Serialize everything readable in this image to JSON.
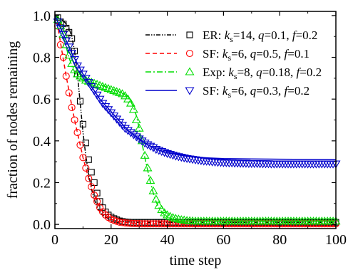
{
  "chart_data": {
    "type": "line",
    "xlabel": "time step",
    "ylabel": "fraction of nodes remaining",
    "xlim": [
      0,
      100
    ],
    "ylim": [
      -0.02,
      1.02
    ],
    "xticks": [
      0,
      20,
      40,
      60,
      80,
      100
    ],
    "yticks": [
      0.0,
      0.2,
      0.4,
      0.6,
      0.8,
      1.0
    ],
    "xtick_labels": [
      "0",
      "20",
      "40",
      "60",
      "80",
      "100"
    ],
    "ytick_labels": [
      "0.0",
      "0.2",
      "0.4",
      "0.6",
      "0.8",
      "1.0"
    ],
    "grid": false,
    "legend_position": "top-right",
    "series": [
      {
        "name": "ER: k_s=14, q=0.1, f=0.2",
        "legend": {
          "pre": "ER: ",
          "k": "k",
          "sub": "s",
          "rest": "=14, ",
          "q": "q",
          "qv": "=0.1, ",
          "f": "f",
          "fv": "=0.2"
        },
        "color": "#000000",
        "line_style": "dash-dot-dot",
        "marker": "square",
        "line_x": [
          0,
          1,
          2,
          3,
          4,
          5,
          6,
          7,
          8,
          9,
          10,
          11,
          12,
          13,
          14,
          15,
          16,
          17,
          18,
          19,
          20,
          22,
          25,
          30,
          40,
          50,
          60,
          70,
          80,
          90,
          100
        ],
        "line_y": [
          1.0,
          0.99,
          0.985,
          0.975,
          0.96,
          0.94,
          0.9,
          0.83,
          0.72,
          0.58,
          0.44,
          0.33,
          0.24,
          0.17,
          0.12,
          0.085,
          0.06,
          0.045,
          0.035,
          0.028,
          0.022,
          0.016,
          0.012,
          0.01,
          0.01,
          0.01,
          0.01,
          0.01,
          0.01,
          0.01,
          0.01
        ],
        "marker_x": [
          1,
          2,
          3,
          4,
          5,
          6,
          7,
          8,
          9,
          10,
          11,
          12,
          13,
          14,
          15,
          16,
          17,
          18,
          19,
          20,
          21,
          22,
          23,
          24,
          25,
          26,
          27,
          28,
          29,
          30,
          31,
          32,
          33,
          34,
          35,
          36,
          37,
          38,
          39,
          40,
          41,
          42,
          43,
          44,
          45,
          46,
          47,
          48,
          49,
          50,
          51,
          52,
          53,
          54,
          55,
          56,
          57,
          58,
          59,
          60,
          61,
          62,
          63,
          64,
          65,
          66,
          67,
          68,
          69,
          70,
          71,
          72,
          73,
          74,
          75,
          76,
          77,
          78,
          79,
          80,
          81,
          82,
          83,
          84,
          85,
          86,
          87,
          88,
          89,
          90,
          91,
          92,
          93,
          94,
          95,
          96,
          97,
          98,
          99,
          100
        ],
        "marker_y": [
          0.99,
          0.97,
          0.96,
          0.94,
          0.92,
          0.89,
          0.83,
          0.72,
          0.59,
          0.48,
          0.39,
          0.31,
          0.25,
          0.2,
          0.15,
          0.11,
          0.08,
          0.06,
          0.045,
          0.035,
          0.028,
          0.022,
          0.017,
          0.014,
          0.012,
          0.011,
          0.01,
          0.01,
          0.01,
          0.01,
          0.01,
          0.01,
          0.01,
          0.01,
          0.01,
          0.01,
          0.01,
          0.01,
          0.01,
          0.01,
          0.01,
          0.01,
          0.01,
          0.01,
          0.01,
          0.01,
          0.01,
          0.01,
          0.01,
          0.01,
          0.01,
          0.01,
          0.01,
          0.01,
          0.01,
          0.01,
          0.01,
          0.01,
          0.01,
          0.01,
          0.01,
          0.01,
          0.01,
          0.01,
          0.01,
          0.01,
          0.01,
          0.01,
          0.01,
          0.01,
          0.01,
          0.01,
          0.01,
          0.01,
          0.01,
          0.01,
          0.01,
          0.01,
          0.01,
          0.01,
          0.01,
          0.01,
          0.01,
          0.01,
          0.01,
          0.01,
          0.01,
          0.01,
          0.01,
          0.01,
          0.01,
          0.01,
          0.01,
          0.01,
          0.01,
          0.01,
          0.01,
          0.01,
          0.01,
          0.01
        ]
      },
      {
        "name": "SF: k_s=6, q=0.5, f=0.1",
        "legend": {
          "pre": "SF: ",
          "k": "k",
          "sub": "s",
          "rest": "=6, ",
          "q": "q",
          "qv": "=0.5, ",
          "f": "f",
          "fv": "=0.1"
        },
        "color": "#ff0000",
        "line_style": "dashed",
        "marker": "circle",
        "line_x": [
          0,
          1,
          2,
          3,
          4,
          5,
          6,
          7,
          8,
          9,
          10,
          11,
          12,
          13,
          14,
          15,
          16,
          17,
          18,
          19,
          20,
          22,
          25,
          30,
          40,
          50,
          60,
          70,
          80,
          90,
          100
        ],
        "line_y": [
          1.0,
          0.95,
          0.87,
          0.79,
          0.71,
          0.64,
          0.57,
          0.5,
          0.44,
          0.38,
          0.32,
          0.27,
          0.22,
          0.18,
          0.14,
          0.11,
          0.08,
          0.06,
          0.045,
          0.034,
          0.025,
          0.015,
          0.008,
          0.004,
          0.002,
          0.002,
          0.002,
          0.002,
          0.002,
          0.002,
          0.002
        ],
        "marker_x": [
          1,
          2,
          3,
          4,
          5,
          6,
          7,
          8,
          9,
          10,
          11,
          12,
          13,
          14,
          15,
          16,
          17,
          18,
          19,
          20,
          21,
          22,
          23,
          24,
          25,
          26,
          27,
          28,
          29,
          30,
          31,
          32,
          33,
          34,
          35,
          36,
          37,
          38,
          39,
          40,
          41,
          42,
          43,
          44,
          45,
          46,
          47,
          48,
          49,
          50,
          51,
          52,
          53,
          54,
          55,
          56,
          57,
          58,
          59,
          60,
          61,
          62,
          63,
          64,
          65,
          66,
          67,
          68,
          69,
          70,
          71,
          72,
          73,
          74,
          75,
          76,
          77,
          78,
          79,
          80,
          81,
          82,
          83,
          84,
          85,
          86,
          87,
          88,
          89,
          90,
          91,
          92,
          93,
          94,
          95,
          96,
          97,
          98,
          99,
          100
        ],
        "marker_y": [
          0.95,
          0.86,
          0.8,
          0.71,
          0.63,
          0.56,
          0.5,
          0.44,
          0.38,
          0.32,
          0.27,
          0.22,
          0.18,
          0.14,
          0.11,
          0.08,
          0.06,
          0.045,
          0.034,
          0.025,
          0.02,
          0.015,
          0.011,
          0.009,
          0.007,
          0.006,
          0.005,
          0.004,
          0.004,
          0.004,
          0.003,
          0.003,
          0.003,
          0.003,
          0.003,
          0.003,
          0.003,
          0.003,
          0.003,
          0.003,
          0.003,
          0.003,
          0.003,
          0.003,
          0.003,
          0.003,
          0.003,
          0.003,
          0.003,
          0.003,
          0.003,
          0.003,
          0.003,
          0.003,
          0.003,
          0.003,
          0.003,
          0.003,
          0.003,
          0.003,
          0.003,
          0.003,
          0.003,
          0.003,
          0.003,
          0.003,
          0.003,
          0.003,
          0.003,
          0.003,
          0.003,
          0.003,
          0.003,
          0.003,
          0.003,
          0.003,
          0.003,
          0.003,
          0.003,
          0.003,
          0.003,
          0.003,
          0.003,
          0.003,
          0.003,
          0.003,
          0.003,
          0.003,
          0.003,
          0.003,
          0.003,
          0.003,
          0.003,
          0.003,
          0.003,
          0.003,
          0.003,
          0.003,
          0.003,
          0.003
        ]
      },
      {
        "name": "Exp: k_s=8, q=0.18, f=0.2",
        "legend": {
          "pre": "Exp: ",
          "k": "k",
          "sub": "s",
          "rest": "=8, ",
          "q": "q",
          "qv": "=0.18, ",
          "f": "f",
          "fv": "=0.2"
        },
        "color": "#00dd00",
        "line_style": "dash-dot",
        "marker": "triangle-up",
        "line_x": [
          0,
          1,
          2,
          3,
          4,
          5,
          6,
          7,
          8,
          9,
          10,
          12,
          14,
          16,
          18,
          20,
          22,
          24,
          26,
          27,
          28,
          29,
          30,
          31,
          32,
          33,
          34,
          35,
          36,
          37,
          38,
          39,
          40,
          42,
          44,
          46,
          50,
          60,
          70,
          80,
          90,
          100
        ],
        "line_y": [
          1.0,
          0.98,
          0.95,
          0.9,
          0.85,
          0.8,
          0.76,
          0.73,
          0.71,
          0.7,
          0.69,
          0.68,
          0.675,
          0.67,
          0.66,
          0.65,
          0.64,
          0.63,
          0.61,
          0.59,
          0.56,
          0.52,
          0.46,
          0.39,
          0.32,
          0.26,
          0.2,
          0.15,
          0.11,
          0.08,
          0.06,
          0.045,
          0.035,
          0.025,
          0.02,
          0.017,
          0.015,
          0.015,
          0.015,
          0.015,
          0.015,
          0.015
        ],
        "marker_x": [
          1,
          2,
          3,
          4,
          5,
          6,
          7,
          8,
          9,
          10,
          11,
          12,
          13,
          14,
          15,
          16,
          17,
          18,
          19,
          20,
          21,
          22,
          23,
          24,
          25,
          26,
          27,
          28,
          29,
          30,
          31,
          32,
          33,
          34,
          35,
          36,
          37,
          38,
          39,
          40,
          41,
          42,
          43,
          44,
          45,
          46,
          47,
          48,
          49,
          50,
          51,
          52,
          53,
          54,
          55,
          56,
          57,
          58,
          59,
          60,
          61,
          62,
          63,
          64,
          65,
          66,
          67,
          68,
          69,
          70,
          71,
          72,
          73,
          74,
          75,
          76,
          77,
          78,
          79,
          80,
          81,
          82,
          83,
          84,
          85,
          86,
          87,
          88,
          89,
          90,
          91,
          92,
          93,
          94,
          95,
          96,
          97,
          98,
          99,
          100
        ],
        "marker_y": [
          0.98,
          0.95,
          0.91,
          0.86,
          0.81,
          0.77,
          0.74,
          0.72,
          0.71,
          0.7,
          0.69,
          0.685,
          0.68,
          0.675,
          0.67,
          0.665,
          0.66,
          0.655,
          0.65,
          0.645,
          0.64,
          0.635,
          0.63,
          0.625,
          0.615,
          0.6,
          0.58,
          0.55,
          0.5,
          0.46,
          0.4,
          0.33,
          0.27,
          0.21,
          0.16,
          0.12,
          0.09,
          0.07,
          0.055,
          0.045,
          0.038,
          0.032,
          0.028,
          0.025,
          0.022,
          0.02,
          0.018,
          0.017,
          0.016,
          0.015,
          0.015,
          0.015,
          0.015,
          0.015,
          0.015,
          0.015,
          0.015,
          0.015,
          0.015,
          0.015,
          0.015,
          0.015,
          0.015,
          0.015,
          0.015,
          0.015,
          0.015,
          0.015,
          0.015,
          0.015,
          0.015,
          0.015,
          0.015,
          0.015,
          0.015,
          0.015,
          0.015,
          0.015,
          0.015,
          0.015,
          0.015,
          0.015,
          0.015,
          0.015,
          0.015,
          0.015,
          0.015,
          0.015,
          0.015,
          0.015,
          0.015,
          0.015,
          0.015,
          0.015,
          0.015,
          0.015,
          0.015,
          0.015,
          0.015,
          0.015
        ]
      },
      {
        "name": "SF: k_s=6, q=0.3, f=0.2",
        "legend": {
          "pre": "SF: ",
          "k": "k",
          "sub": "s",
          "rest": "=6, ",
          "q": "q",
          "qv": "=0.3, ",
          "f": "f",
          "fv": "=0.2"
        },
        "color": "#0000cc",
        "line_style": "solid",
        "marker": "triangle-down",
        "line_x": [
          0,
          2,
          4,
          6,
          8,
          10,
          12,
          14,
          16,
          18,
          20,
          22,
          24,
          26,
          28,
          30,
          32,
          34,
          36,
          38,
          40,
          45,
          50,
          55,
          60,
          70,
          80,
          90,
          100
        ],
        "line_y": [
          1.0,
          0.94,
          0.88,
          0.82,
          0.77,
          0.72,
          0.68,
          0.64,
          0.6,
          0.57,
          0.54,
          0.51,
          0.48,
          0.45,
          0.43,
          0.41,
          0.39,
          0.375,
          0.362,
          0.352,
          0.343,
          0.33,
          0.322,
          0.318,
          0.315,
          0.313,
          0.312,
          0.311,
          0.31
        ],
        "marker_x": [
          1,
          2,
          3,
          4,
          5,
          6,
          7,
          8,
          9,
          10,
          11,
          12,
          13,
          14,
          15,
          16,
          17,
          18,
          19,
          20,
          21,
          22,
          23,
          24,
          25,
          26,
          27,
          28,
          29,
          30,
          31,
          32,
          33,
          34,
          35,
          36,
          37,
          38,
          39,
          40,
          41,
          42,
          43,
          44,
          45,
          46,
          47,
          48,
          49,
          50,
          51,
          52,
          53,
          54,
          55,
          56,
          57,
          58,
          59,
          60,
          61,
          62,
          63,
          64,
          65,
          66,
          67,
          68,
          69,
          70,
          71,
          72,
          73,
          74,
          75,
          76,
          77,
          78,
          79,
          80,
          81,
          82,
          83,
          84,
          85,
          86,
          87,
          88,
          89,
          90,
          91,
          92,
          93,
          94,
          95,
          96,
          97,
          98,
          99,
          100
        ],
        "marker_y": [
          0.97,
          0.94,
          0.91,
          0.88,
          0.85,
          0.82,
          0.79,
          0.76,
          0.74,
          0.72,
          0.7,
          0.68,
          0.66,
          0.64,
          0.62,
          0.6,
          0.58,
          0.565,
          0.55,
          0.535,
          0.52,
          0.505,
          0.49,
          0.475,
          0.46,
          0.45,
          0.44,
          0.43,
          0.42,
          0.41,
          0.4,
          0.39,
          0.382,
          0.375,
          0.368,
          0.36,
          0.355,
          0.35,
          0.345,
          0.34,
          0.336,
          0.332,
          0.328,
          0.325,
          0.322,
          0.319,
          0.316,
          0.314,
          0.312,
          0.31,
          0.308,
          0.306,
          0.304,
          0.303,
          0.302,
          0.3,
          0.299,
          0.298,
          0.297,
          0.296,
          0.296,
          0.295,
          0.295,
          0.294,
          0.294,
          0.293,
          0.293,
          0.293,
          0.292,
          0.292,
          0.292,
          0.292,
          0.291,
          0.291,
          0.291,
          0.291,
          0.29,
          0.29,
          0.29,
          0.29,
          0.29,
          0.29,
          0.29,
          0.29,
          0.29,
          0.29,
          0.29,
          0.29,
          0.29,
          0.29,
          0.29,
          0.29,
          0.29,
          0.29,
          0.29,
          0.29,
          0.29,
          0.29,
          0.29,
          0.29
        ]
      }
    ]
  }
}
